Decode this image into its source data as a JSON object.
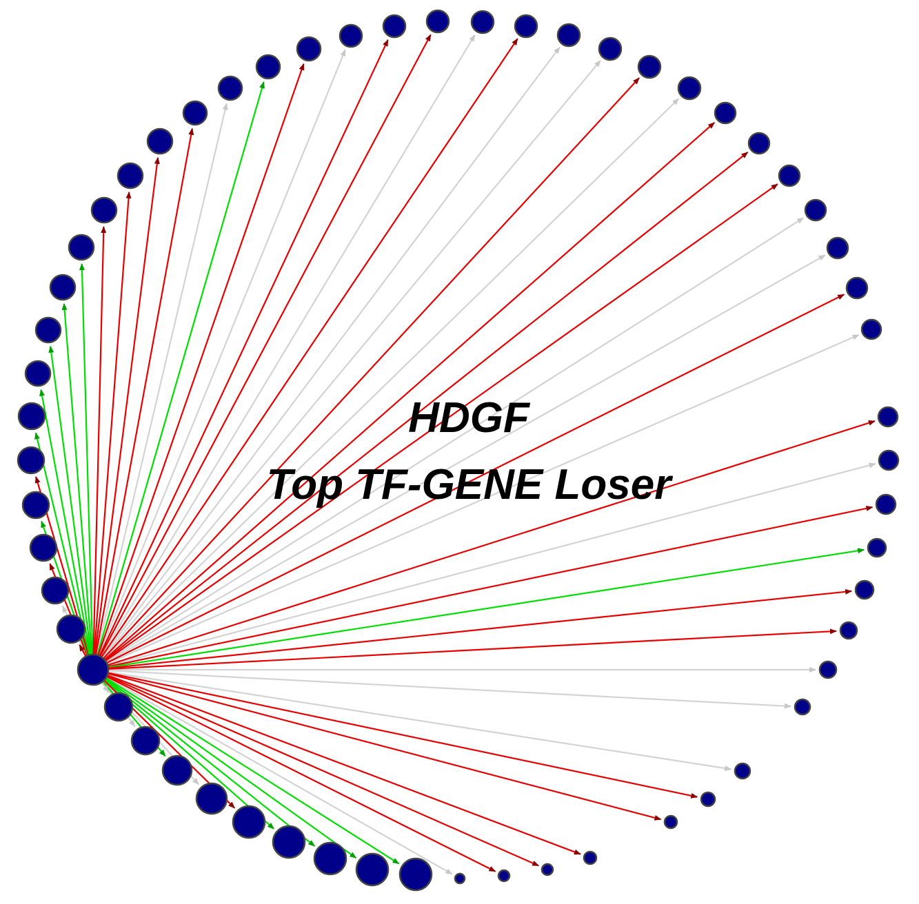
{
  "title": {
    "line1": "HDGF",
    "line2": "Top TF-GENE Loser"
  }
}
